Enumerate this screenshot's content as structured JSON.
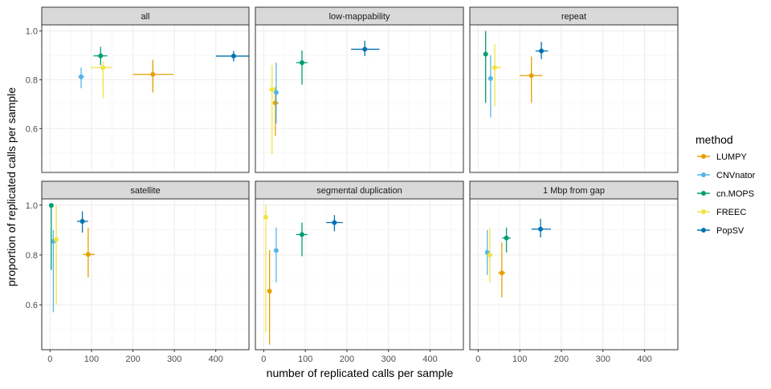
{
  "chart_data": {
    "type": "scatter",
    "xlabel": "number of replicated calls per sample",
    "ylabel": "proportion of replicated calls per sample",
    "xlim": [
      -20,
      480
    ],
    "ylim": [
      0.42,
      1.025
    ],
    "x_ticks": [
      0,
      100,
      200,
      300,
      400
    ],
    "y_ticks": [
      0.6,
      0.8,
      1.0
    ],
    "x_tick_labels": [
      "0",
      "100",
      "200",
      "300",
      "400"
    ],
    "y_tick_labels": [
      "0.6",
      "0.8",
      "1.0"
    ],
    "grid": true,
    "legend": {
      "title": "method",
      "position": "right",
      "entries": [
        {
          "name": "LUMPY",
          "color": "#E69F00"
        },
        {
          "name": "CNVnator",
          "color": "#56B4E9"
        },
        {
          "name": "cn.MOPS",
          "color": "#009E73"
        },
        {
          "name": "FREEC",
          "color": "#F0E442"
        },
        {
          "name": "PopSV",
          "color": "#0072B2"
        }
      ]
    },
    "panels": [
      {
        "title": "all",
        "points": [
          {
            "method": "LUMPY",
            "x": 248,
            "y": 0.822,
            "xerr": [
              200,
              298
            ],
            "yerr": [
              0.748,
              0.882
            ]
          },
          {
            "method": "CNVnator",
            "x": 75,
            "y": 0.812,
            "xerr": [
              68,
              82
            ],
            "yerr": [
              0.765,
              0.85
            ]
          },
          {
            "method": "cn.MOPS",
            "x": 122,
            "y": 0.898,
            "xerr": [
              105,
              138
            ],
            "yerr": [
              0.86,
              0.935
            ]
          },
          {
            "method": "FREEC",
            "x": 128,
            "y": 0.85,
            "xerr": [
              98,
              150
            ],
            "yerr": [
              0.725,
              0.875
            ]
          },
          {
            "method": "PopSV",
            "x": 443,
            "y": 0.897,
            "xerr": [
              400,
              480
            ],
            "yerr": [
              0.875,
              0.918
            ]
          }
        ]
      },
      {
        "title": "low-mappability",
        "points": [
          {
            "method": "LUMPY",
            "x": 28,
            "y": 0.705,
            "xerr": [
              22,
              36
            ],
            "yerr": [
              0.57,
              0.77
            ]
          },
          {
            "method": "CNVnator",
            "x": 30,
            "y": 0.748,
            "xerr": [
              25,
              35
            ],
            "yerr": [
              0.62,
              0.87
            ]
          },
          {
            "method": "cn.MOPS",
            "x": 92,
            "y": 0.87,
            "xerr": [
              78,
              105
            ],
            "yerr": [
              0.78,
              0.92
            ]
          },
          {
            "method": "FREEC",
            "x": 20,
            "y": 0.76,
            "xerr": [
              12,
              28
            ],
            "yerr": [
              0.495,
              0.86
            ]
          },
          {
            "method": "PopSV",
            "x": 243,
            "y": 0.925,
            "xerr": [
              210,
              278
            ],
            "yerr": [
              0.897,
              0.96
            ]
          }
        ]
      },
      {
        "title": "repeat",
        "points": [
          {
            "method": "LUMPY",
            "x": 128,
            "y": 0.817,
            "xerr": [
              100,
              155
            ],
            "yerr": [
              0.705,
              0.895
            ]
          },
          {
            "method": "CNVnator",
            "x": 30,
            "y": 0.805,
            "xerr": [
              26,
              34
            ],
            "yerr": [
              0.645,
              0.9
            ]
          },
          {
            "method": "cn.MOPS",
            "x": 18,
            "y": 0.905,
            "xerr": [
              15,
              22
            ],
            "yerr": [
              0.705,
              1.0
            ]
          },
          {
            "method": "FREEC",
            "x": 40,
            "y": 0.85,
            "xerr": [
              30,
              55
            ],
            "yerr": [
              0.69,
              0.945
            ]
          },
          {
            "method": "PopSV",
            "x": 152,
            "y": 0.918,
            "xerr": [
              138,
              168
            ],
            "yerr": [
              0.885,
              0.955
            ]
          }
        ]
      },
      {
        "title": "satellite",
        "points": [
          {
            "method": "LUMPY",
            "x": 92,
            "y": 0.802,
            "xerr": [
              80,
              108
            ],
            "yerr": [
              0.71,
              0.91
            ]
          },
          {
            "method": "CNVnator",
            "x": 8,
            "y": 0.855,
            "xerr": [
              5,
              11
            ],
            "yerr": [
              0.57,
              0.9
            ]
          },
          {
            "method": "cn.MOPS",
            "x": 3,
            "y": 0.999,
            "xerr": [
              1,
              5
            ],
            "yerr": [
              0.74,
              1.0
            ]
          },
          {
            "method": "FREEC",
            "x": 15,
            "y": 0.862,
            "xerr": [
              10,
              20
            ],
            "yerr": [
              0.6,
              1.0
            ]
          },
          {
            "method": "PopSV",
            "x": 78,
            "y": 0.935,
            "xerr": [
              65,
              92
            ],
            "yerr": [
              0.89,
              0.975
            ]
          }
        ]
      },
      {
        "title": "segmental duplication",
        "points": [
          {
            "method": "LUMPY",
            "x": 14,
            "y": 0.655,
            "xerr": [
              10,
              18
            ],
            "yerr": [
              0.44,
              0.82
            ]
          },
          {
            "method": "CNVnator",
            "x": 30,
            "y": 0.818,
            "xerr": [
              26,
              34
            ],
            "yerr": [
              0.69,
              0.91
            ]
          },
          {
            "method": "cn.MOPS",
            "x": 92,
            "y": 0.882,
            "xerr": [
              78,
              105
            ],
            "yerr": [
              0.795,
              0.93
            ]
          },
          {
            "method": "FREEC",
            "x": 5,
            "y": 0.952,
            "xerr": [
              2,
              8
            ],
            "yerr": [
              0.49,
              1.0
            ]
          },
          {
            "method": "PopSV",
            "x": 170,
            "y": 0.93,
            "xerr": [
              150,
              190
            ],
            "yerr": [
              0.895,
              0.96
            ]
          }
        ]
      },
      {
        "title": "1 Mbp from gap",
        "points": [
          {
            "method": "LUMPY",
            "x": 57,
            "y": 0.728,
            "xerr": [
              48,
              65
            ],
            "yerr": [
              0.63,
              0.85
            ]
          },
          {
            "method": "CNVnator",
            "x": 22,
            "y": 0.81,
            "xerr": [
              18,
              26
            ],
            "yerr": [
              0.72,
              0.9
            ]
          },
          {
            "method": "cn.MOPS",
            "x": 68,
            "y": 0.868,
            "xerr": [
              58,
              78
            ],
            "yerr": [
              0.81,
              0.91
            ]
          },
          {
            "method": "FREEC",
            "x": 28,
            "y": 0.8,
            "xerr": [
              22,
              35
            ],
            "yerr": [
              0.69,
              0.91
            ]
          },
          {
            "method": "PopSV",
            "x": 150,
            "y": 0.904,
            "xerr": [
              128,
              175
            ],
            "yerr": [
              0.87,
              0.945
            ]
          }
        ]
      }
    ]
  }
}
